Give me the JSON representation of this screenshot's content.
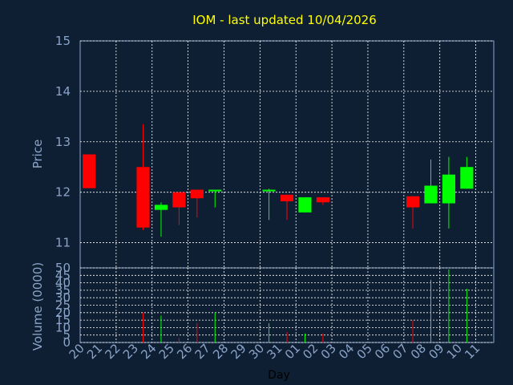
{
  "chart_data": {
    "type": "candlestick",
    "title": "IOM - last updated 10/04/2026",
    "xlabel": "Day",
    "price_panel": {
      "ylabel": "Price",
      "ylim": [
        10.5,
        15
      ],
      "yticks": [
        "11",
        "12",
        "13",
        "14",
        "15"
      ],
      "grid": true
    },
    "volume_panel": {
      "ylabel": "Volume (0000)",
      "ylim": [
        0,
        50
      ],
      "yticks": [
        "0",
        "5",
        "10",
        "15",
        "20",
        "25",
        "30",
        "35",
        "40",
        "45",
        "50"
      ],
      "grid": true
    },
    "days": [
      "20",
      "21",
      "22",
      "23",
      "24",
      "25",
      "26",
      "27",
      "28",
      "29",
      "30",
      "31",
      "01",
      "02",
      "03",
      "04",
      "05",
      "06",
      "07",
      "08",
      "09",
      "10",
      "11"
    ],
    "candles": [
      {
        "day": "20",
        "open": 12.75,
        "high": 12.75,
        "low": 12.08,
        "close": 12.08,
        "volume": 0
      },
      {
        "day": "23",
        "open": 12.5,
        "high": 13.35,
        "low": 11.25,
        "close": 11.3,
        "volume": 20
      },
      {
        "day": "24",
        "open": 11.65,
        "high": 11.8,
        "low": 11.12,
        "close": 11.75,
        "volume": 18
      },
      {
        "day": "25",
        "open": 12.0,
        "high": 12.0,
        "low": 11.35,
        "close": 11.7,
        "volume": 3
      },
      {
        "day": "26",
        "open": 12.05,
        "high": 12.05,
        "low": 11.5,
        "close": 11.88,
        "volume": 13
      },
      {
        "day": "27",
        "open": 12.02,
        "high": 12.05,
        "low": 11.7,
        "close": 12.05,
        "volume": 20
      },
      {
        "day": "30",
        "open": 12.02,
        "high": 12.07,
        "low": 11.45,
        "close": 12.05,
        "volume": 13
      },
      {
        "day": "31",
        "open": 11.95,
        "high": 11.95,
        "low": 11.45,
        "close": 11.82,
        "volume": 7
      },
      {
        "day": "01",
        "open": 11.6,
        "high": 11.9,
        "low": 11.6,
        "close": 11.9,
        "volume": 6
      },
      {
        "day": "02",
        "open": 11.9,
        "high": 11.9,
        "low": 11.75,
        "close": 11.8,
        "volume": 6
      },
      {
        "day": "07",
        "open": 11.92,
        "high": 11.92,
        "low": 11.28,
        "close": 11.7,
        "volume": 15
      },
      {
        "day": "08",
        "open": 11.78,
        "high": 12.65,
        "low": 11.78,
        "close": 12.13,
        "volume": 42
      },
      {
        "day": "09",
        "open": 11.78,
        "high": 12.7,
        "low": 11.28,
        "close": 12.35,
        "volume": 49
      },
      {
        "day": "10",
        "open": 12.07,
        "high": 12.7,
        "low": 12.07,
        "close": 12.5,
        "volume": 36
      }
    ],
    "colors": {
      "background": "#0f1f33",
      "plot_background": "#0f1f33",
      "grid": "#ffffff",
      "up": "#00ff00",
      "down": "#ff0000",
      "title": "#ffff00",
      "axis_text": "#8aa4c8"
    }
  }
}
